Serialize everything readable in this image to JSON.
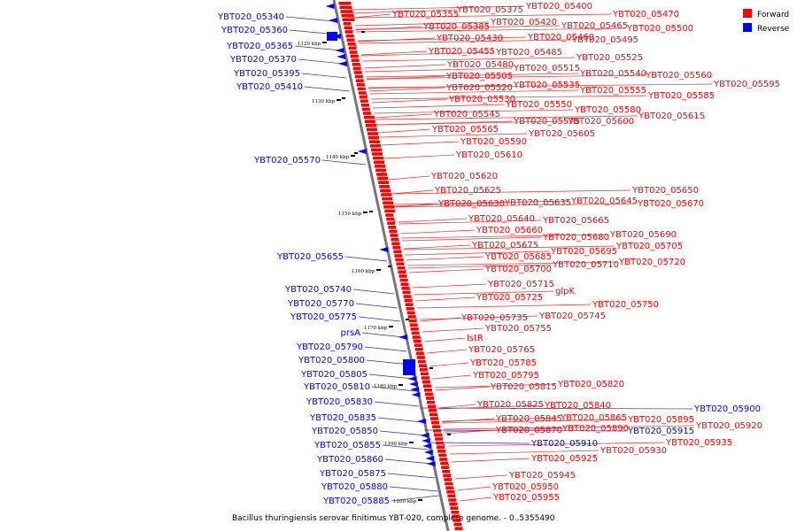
{
  "caption": "Bacillus thuringiensis serovar finitimus YBT-020, complete genome. - 0..5355490",
  "legend": [
    {
      "label": "Forward",
      "color": "#ff0000"
    },
    {
      "label": "Reverse",
      "color": "#0000ff"
    }
  ],
  "colors": {
    "forward": "#ff0000",
    "reverse": "#0000ff",
    "forward_line": "#e03030",
    "reverse_line": "#2a2ad0",
    "backbone": "#777777"
  },
  "scale_ticks": [
    "1120 kbp",
    "1130 kbp",
    "1140 kbp",
    "1150 kbp",
    "1160 kbp",
    "1170 kbp",
    "1180 kbp",
    "1190 kbp",
    "1200 kbp"
  ],
  "reverse_genes": [
    "YBT020_05340",
    "YBT020_05360",
    "YBT020_05365",
    "YBT020_05370",
    "YBT020_05395",
    "YBT020_05410",
    "YBT020_05570",
    "YBT020_05655",
    "YBT020_05740",
    "YBT020_05770",
    "YBT020_05775",
    "prsA",
    "YBT020_05790",
    "YBT020_05800",
    "YBT020_05805",
    "YBT020_05810",
    "YBT020_05830",
    "YBT020_05835",
    "YBT020_05850",
    "YBT020_05855",
    "YBT020_05860",
    "YBT020_05875",
    "YBT020_05880",
    "YBT020_05885",
    "YBT020_05900",
    "YBT020_05910",
    "YBT020_05915"
  ],
  "forward_genes": [
    "YBT020_05355",
    "YBT020_05375",
    "YBT020_05400",
    "YBT020_05385",
    "YBT020_05420",
    "YBT020_05465",
    "YBT020_05470",
    "YBT020_05430",
    "YBT020_05460",
    "YBT020_05495",
    "YBT020_05500",
    "YBT020_05455",
    "YBT020_05485",
    "YBT020_05480",
    "YBT020_05515",
    "YBT020_05525",
    "YBT020_05505",
    "YBT020_05540",
    "YBT020_05560",
    "YBT020_05520",
    "YBT020_05535",
    "YBT020_05555",
    "YBT020_05585",
    "YBT020_05595",
    "YBT020_05530",
    "YBT020_05550",
    "YBT020_05580",
    "YBT020_05545",
    "YBT020_05575",
    "YBT020_05600",
    "YBT020_05615",
    "YBT020_05565",
    "YBT020_05605",
    "YBT020_05590",
    "YBT020_05610",
    "YBT020_05620",
    "YBT020_05625",
    "YBT020_05650",
    "YBT020_05630",
    "YBT020_05635",
    "YBT020_05645",
    "YBT020_05670",
    "YBT020_05640",
    "YBT020_05665",
    "YBT020_05660",
    "YBT020_05690",
    "YBT020_05680",
    "YBT020_05675",
    "YBT020_05695",
    "YBT020_05705",
    "YBT020_05685",
    "YBT020_05720",
    "YBT020_05700",
    "YBT020_05710",
    "YBT020_05715",
    "glpK",
    "YBT020_05725",
    "YBT020_05750",
    "YBT020_05735",
    "YBT020_05745",
    "YBT020_05755",
    "lstR",
    "YBT020_05765",
    "YBT020_05785",
    "YBT020_05795",
    "YBT020_05815",
    "YBT020_05820",
    "YBT020_05825",
    "YBT020_05840",
    "YBT020_05845",
    "YBT020_05865",
    "YBT020_05895",
    "YBT020_05870",
    "YBT020_05890",
    "YBT020_05920",
    "YBT020_05935",
    "YBT020_05930",
    "YBT020_05925",
    "YBT020_05945",
    "YBT020_05950",
    "YBT020_05955"
  ]
}
